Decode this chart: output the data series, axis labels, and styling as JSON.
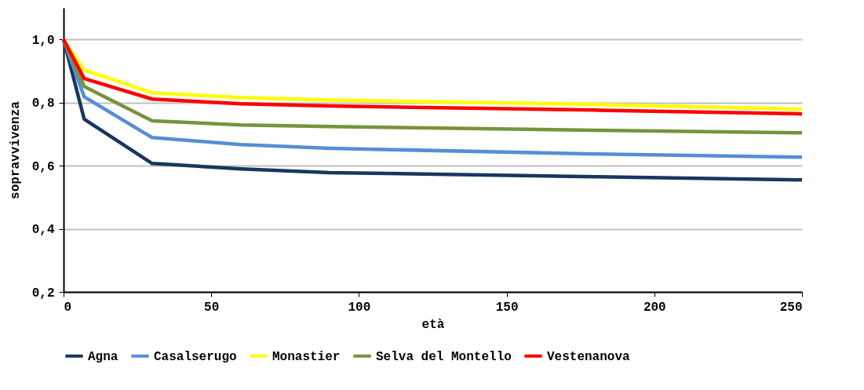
{
  "chart_data": {
    "type": "line",
    "xlabel": "età",
    "ylabel": "sopravvivenza",
    "x": [
      0,
      7,
      30,
      60,
      90,
      180,
      250
    ],
    "series": [
      {
        "name": "Agna",
        "color": "#17375e",
        "values": [
          1.0,
          0.747,
          0.607,
          0.59,
          0.578,
          0.565,
          0.555
        ]
      },
      {
        "name": "Casalserugo",
        "color": "#558ed5",
        "values": [
          1.0,
          0.818,
          0.689,
          0.667,
          0.655,
          0.637,
          0.627
        ]
      },
      {
        "name": "Monastier",
        "color": "#ffff00",
        "values": [
          1.0,
          0.903,
          0.831,
          0.816,
          0.808,
          0.794,
          0.779
        ]
      },
      {
        "name": "Selva del Montello",
        "color": "#77933c",
        "values": [
          1.0,
          0.851,
          0.742,
          0.729,
          0.724,
          0.712,
          0.704
        ]
      },
      {
        "name": "Vestenanova",
        "color": "#ff0000",
        "values": [
          1.0,
          0.876,
          0.811,
          0.796,
          0.789,
          0.776,
          0.764
        ]
      }
    ],
    "xlim": [
      0,
      250
    ],
    "xticks": [
      0,
      50,
      100,
      150,
      200,
      250
    ],
    "ylim": [
      0.2,
      1.1
    ],
    "yticks": [
      {
        "value": 0.2,
        "label": "0,2"
      },
      {
        "value": 0.4,
        "label": "0,4"
      },
      {
        "value": 0.6,
        "label": "0,6"
      },
      {
        "value": 0.8,
        "label": "0,8"
      },
      {
        "value": 1.0,
        "label": "1,0"
      }
    ],
    "grid": "y",
    "legend": "bottom",
    "marker": "none",
    "line_style": "solid"
  }
}
